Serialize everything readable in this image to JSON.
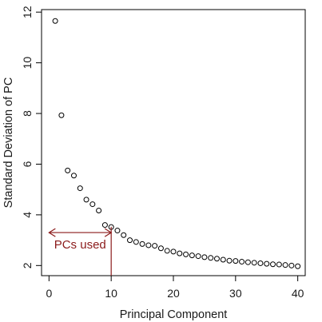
{
  "chart_data": {
    "type": "scatter",
    "title": "",
    "xlabel": "Principal Component",
    "ylabel": "Standard Deviation of PC",
    "xlim": [
      -1.2,
      41.2
    ],
    "ylim": [
      1.6,
      12.1
    ],
    "x_ticks": [
      0,
      10,
      20,
      30,
      40
    ],
    "y_ticks": [
      2,
      4,
      6,
      8,
      10,
      12
    ],
    "grid": false,
    "legend": "none",
    "series": [
      {
        "x": [
          1,
          2,
          3,
          4,
          5,
          6,
          7,
          8,
          9,
          10,
          11,
          12,
          13,
          14,
          15,
          16,
          17,
          18,
          19,
          20,
          21,
          22,
          23,
          24,
          25,
          26,
          27,
          28,
          29,
          30,
          31,
          32,
          33,
          34,
          35,
          36,
          37,
          38,
          39,
          40
        ],
        "values": [
          11.65,
          7.93,
          5.75,
          5.55,
          5.05,
          4.6,
          4.42,
          4.17,
          3.6,
          3.52,
          3.38,
          3.2,
          3.0,
          2.93,
          2.85,
          2.8,
          2.78,
          2.68,
          2.58,
          2.55,
          2.48,
          2.44,
          2.4,
          2.37,
          2.33,
          2.3,
          2.27,
          2.23,
          2.19,
          2.18,
          2.15,
          2.13,
          2.11,
          2.09,
          2.07,
          2.05,
          2.04,
          2.02,
          2.0,
          1.97
        ]
      }
    ],
    "annotation": {
      "text": "PCs used",
      "color": "#8b1a1a",
      "arrow_from_x": 0,
      "arrow_to_x": 10,
      "arrow_y": 3.3,
      "cutoff_x": 10
    }
  }
}
